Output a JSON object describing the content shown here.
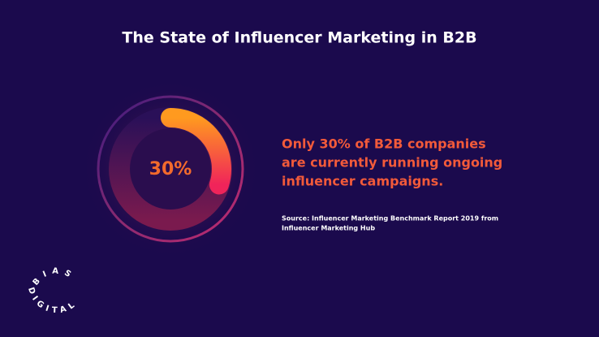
{
  "chart_data": {
    "type": "donut",
    "title": "The State of Influencer Marketing in B2B",
    "values": [
      30
    ],
    "value_labels": [
      "30%"
    ],
    "max": 100,
    "color": "#ff8a1f",
    "headline": [
      "Only 30% of B2B companies",
      "are currently running ongoing",
      "influencer campaigns."
    ],
    "source": [
      "Source: Influencer Marketing Benchmark Report 2019 from",
      "Influencer Marketing Hub"
    ],
    "logo": {
      "top": "BIAS",
      "bottom": "DIGITAL"
    }
  }
}
